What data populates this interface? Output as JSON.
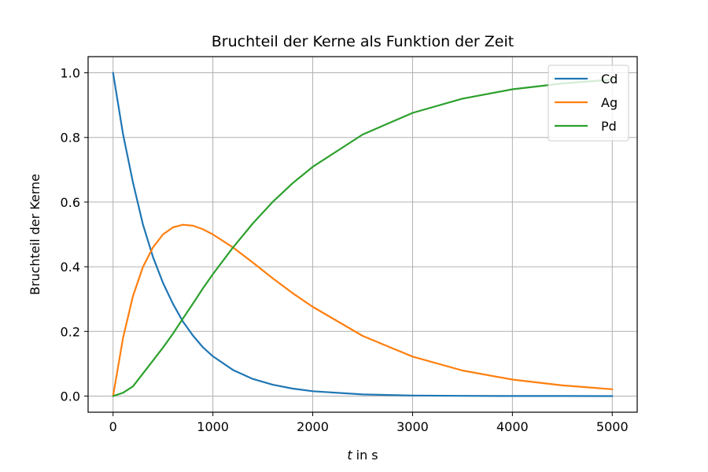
{
  "chart_data": {
    "type": "line",
    "title": "Bruchteil der Kerne als Funktion der Zeit",
    "xlabel_var": "t",
    "xlabel_unit": "in s",
    "ylabel": "Bruchteil der Kerne",
    "xlim": [
      -250,
      5250
    ],
    "ylim": [
      -0.05,
      1.05
    ],
    "x_ticks": [
      0,
      1000,
      2000,
      3000,
      4000,
      5000
    ],
    "y_ticks": [
      0.0,
      0.2,
      0.4,
      0.6,
      0.8,
      1.0
    ],
    "x_tick_labels": [
      "0",
      "1000",
      "2000",
      "3000",
      "4000",
      "5000"
    ],
    "y_tick_labels": [
      "0.0",
      "0.2",
      "0.4",
      "0.6",
      "0.8",
      "1.0"
    ],
    "grid": true,
    "legend_position": "top-right",
    "series": [
      {
        "name": "Cd",
        "color": "#1f77b4",
        "x": [
          0,
          100,
          200,
          300,
          400,
          500,
          600,
          700,
          800,
          900,
          1000,
          1200,
          1400,
          1600,
          1800,
          2000,
          2500,
          3000,
          3500,
          4000,
          4500,
          5000
        ],
        "y": [
          1.0,
          0.81,
          0.66,
          0.53,
          0.43,
          0.35,
          0.285,
          0.23,
          0.187,
          0.151,
          0.123,
          0.081,
          0.053,
          0.035,
          0.023,
          0.015,
          0.005,
          0.0017,
          0.0006,
          0.0002,
          0.0001,
          0.0
        ]
      },
      {
        "name": "Ag",
        "color": "#ff7f0e",
        "x": [
          0,
          100,
          200,
          300,
          400,
          500,
          600,
          700,
          800,
          900,
          1000,
          1200,
          1400,
          1600,
          1800,
          2000,
          2500,
          3000,
          3500,
          4000,
          4500,
          5000
        ],
        "y": [
          0.0,
          0.18,
          0.31,
          0.4,
          0.46,
          0.5,
          0.522,
          0.53,
          0.527,
          0.516,
          0.5,
          0.46,
          0.413,
          0.364,
          0.318,
          0.276,
          0.186,
          0.122,
          0.079,
          0.051,
          0.033,
          0.021
        ]
      },
      {
        "name": "Pd",
        "color": "#2ca02c",
        "x": [
          0,
          100,
          200,
          300,
          400,
          500,
          600,
          700,
          800,
          900,
          1000,
          1200,
          1400,
          1600,
          1800,
          2000,
          2500,
          3000,
          3500,
          4000,
          4500,
          5000
        ],
        "y": [
          0.0,
          0.01,
          0.03,
          0.07,
          0.11,
          0.15,
          0.193,
          0.24,
          0.286,
          0.333,
          0.377,
          0.459,
          0.534,
          0.601,
          0.659,
          0.709,
          0.809,
          0.876,
          0.92,
          0.949,
          0.967,
          0.979
        ]
      }
    ]
  }
}
